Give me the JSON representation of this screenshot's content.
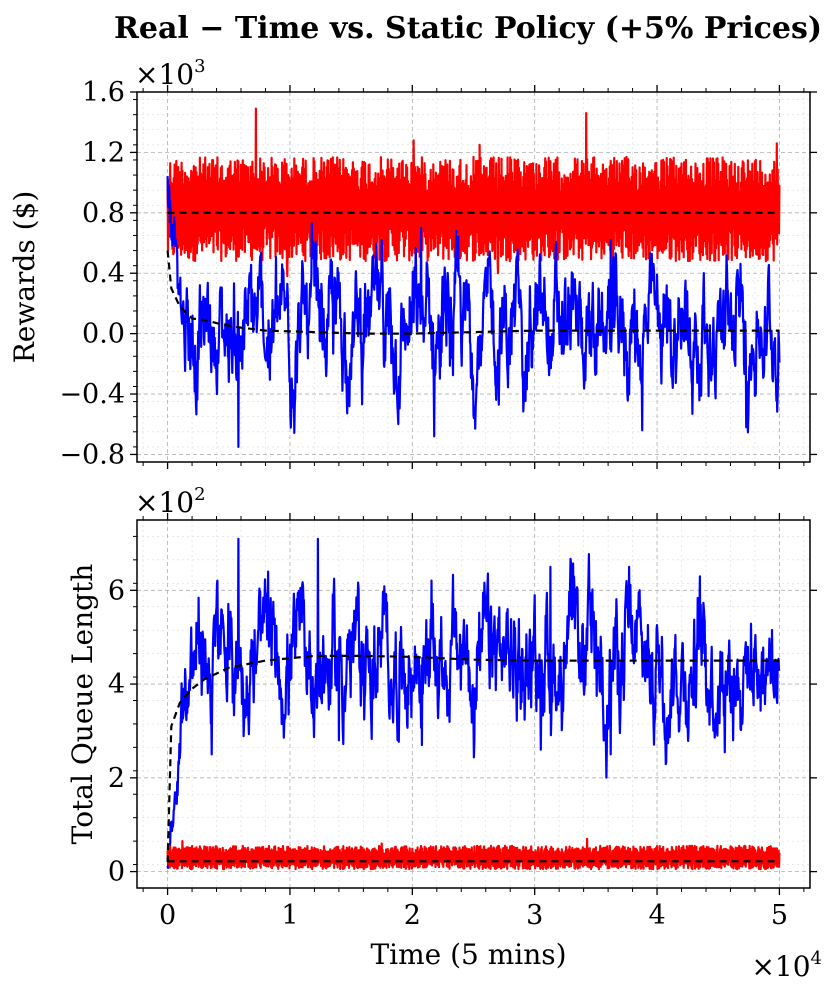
{
  "figure": {
    "title": "Real − Time vs. Static Policy (+5% Prices)",
    "colors": {
      "real_time": "#ff0000",
      "static": "#0000ff",
      "mean": "#000000"
    }
  },
  "chart_data": [
    {
      "type": "line",
      "panel": "top",
      "title": "",
      "xlabel": "",
      "ylabel": "Rewards ($)",
      "y_multiplier": "×10",
      "y_multiplier_exp": "3",
      "xlim": [
        -2500,
        52500
      ],
      "ylim": [
        -0.85,
        1.6
      ],
      "yticks": [
        -0.8,
        -0.4,
        0.0,
        0.4,
        0.8,
        1.2,
        1.6
      ],
      "ytick_labels": [
        "−0.8",
        "−0.4",
        "0.0",
        "0.4",
        "0.8",
        "1.2",
        "1.6"
      ],
      "xticks": [
        0,
        10000,
        20000,
        30000,
        40000,
        50000
      ],
      "xtick_labels": [
        "",
        "",
        "",
        "",
        "",
        ""
      ],
      "grid": true,
      "series": [
        {
          "color": "#ff0000",
          "style": "noisy",
          "x_range": [
            0,
            50000
          ],
          "band_low": 0.48,
          "band_high": 1.17,
          "spikes": [
            [
              7200,
              1.49
            ],
            [
              34200,
              1.46
            ],
            [
              20100,
              1.28
            ],
            [
              25500,
              1.25
            ],
            [
              49800,
              1.26
            ]
          ],
          "dips": [
            [
              9800,
              0.38
            ],
            [
              27000,
              0.4
            ]
          ]
        },
        {
          "color": "#0000ff",
          "style": "noisy",
          "x_range": [
            0,
            50000
          ],
          "start": 0.97,
          "center": 0.02,
          "band_low": -0.35,
          "band_high": 0.4,
          "spikes": [
            [
              11800,
              0.73
            ],
            [
              20700,
              0.7
            ],
            [
              36200,
              0.62
            ]
          ],
          "dips": [
            [
              5800,
              -0.75
            ],
            [
              21800,
              -0.68
            ],
            [
              38800,
              -0.64
            ],
            [
              47300,
              -0.62
            ]
          ]
        },
        {
          "color": "#000000",
          "style": "dashed-mean",
          "x": [
            0,
            1000,
            3000,
            10000,
            20000,
            50000
          ],
          "y": [
            0.8,
            0.8,
            0.8,
            0.8,
            0.8,
            0.8
          ]
        },
        {
          "color": "#000000",
          "style": "dashed-mean",
          "x": [
            0,
            300,
            1000,
            2000,
            3000,
            4500,
            6000,
            8000,
            12000,
            16000,
            20000,
            25000,
            30000,
            35000,
            40000,
            45000,
            50000
          ],
          "y": [
            0.55,
            0.3,
            0.18,
            0.1,
            0.09,
            0.06,
            0.04,
            0.02,
            0.01,
            0.0,
            0.0,
            0.01,
            0.02,
            0.02,
            0.02,
            0.02,
            0.02
          ]
        }
      ]
    },
    {
      "type": "line",
      "panel": "bottom",
      "title": "",
      "xlabel": "Time (5 mins)",
      "ylabel": "Total Queue Length",
      "y_multiplier": "×10",
      "y_multiplier_exp": "2",
      "x_multiplier": "×10",
      "x_multiplier_exp": "4",
      "xlim": [
        -2500,
        52500
      ],
      "ylim": [
        -0.35,
        7.5
      ],
      "yticks": [
        0,
        2,
        4,
        6
      ],
      "ytick_labels": [
        "0",
        "2",
        "4",
        "6"
      ],
      "xticks": [
        0,
        10000,
        20000,
        30000,
        40000,
        50000
      ],
      "xtick_labels": [
        "0",
        "1",
        "2",
        "3",
        "4",
        "5"
      ],
      "grid": true,
      "series": [
        {
          "color": "#0000ff",
          "style": "noisy",
          "x_range": [
            0,
            50000
          ],
          "start": 0.0,
          "center": 4.5,
          "band_low": 3.2,
          "band_high": 5.7,
          "spikes": [
            [
              5800,
              7.1
            ],
            [
              12300,
              7.1
            ],
            [
              8200,
              6.4
            ],
            [
              31300,
              6.5
            ],
            [
              37700,
              6.5
            ],
            [
              43500,
              6.3
            ]
          ],
          "dips": [
            [
              3600,
              2.5
            ],
            [
              14000,
              2.8
            ],
            [
              20800,
              2.7
            ],
            [
              30500,
              2.6
            ],
            [
              36200,
              2.5
            ],
            [
              46200,
              2.8
            ]
          ]
        },
        {
          "color": "#ff0000",
          "style": "noisy",
          "x_range": [
            0,
            50000
          ],
          "band_low": 0.05,
          "band_high": 0.55,
          "spikes": [
            [
              1200,
              0.65
            ],
            [
              34300,
              0.7
            ],
            [
              17500,
              0.6
            ]
          ],
          "dips": []
        },
        {
          "color": "#000000",
          "style": "dashed-mean",
          "x": [
            0,
            300,
            1000,
            2000,
            3000,
            5000,
            8000,
            12000,
            16000,
            20000,
            25000,
            30000,
            40000,
            50000
          ],
          "y": [
            0.2,
            3.1,
            3.6,
            3.9,
            4.1,
            4.35,
            4.5,
            4.6,
            4.6,
            4.58,
            4.52,
            4.5,
            4.5,
            4.5
          ]
        },
        {
          "color": "#000000",
          "style": "dashed-mean",
          "x": [
            0,
            1000,
            10000,
            30000,
            50000
          ],
          "y": [
            0.22,
            0.22,
            0.22,
            0.22,
            0.22
          ]
        }
      ]
    }
  ]
}
